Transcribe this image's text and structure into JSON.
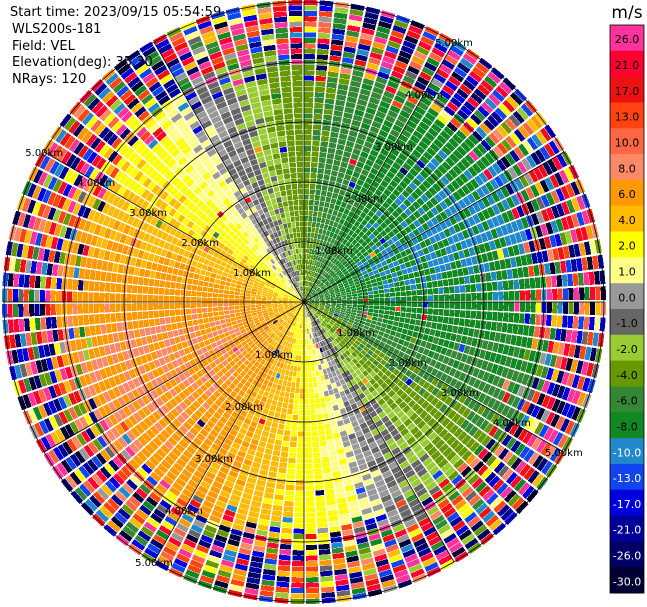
{
  "header": {
    "start_time": "Start time: 2023/09/15 05:54:59",
    "instrument": "WLS200s-181",
    "field": "Field: VEL",
    "elevation": "Elevation(deg): 35.30",
    "nrays": "NRays: 120"
  },
  "chart_data": {
    "type": "heatmap",
    "projection": "polar",
    "range_rings_km": [
      1,
      2,
      3,
      4,
      5
    ],
    "range_labels": [
      "1.00km",
      "2.00km",
      "3.00km",
      "4.00km",
      "5.00km"
    ],
    "radials_deg": [
      0,
      30,
      60,
      90,
      120,
      150
    ],
    "nrays": 120,
    "max_range_km": 5.0,
    "pattern": {
      "wind_toward_deg": 65,
      "max_speed_ms": 8,
      "noise_begins_km": 3.9
    },
    "colorbar": {
      "unit": "m/s",
      "tick_labels": [
        "26.0",
        "21.0",
        "17.0",
        "13.0",
        "10.0",
        "8.0",
        "6.0",
        "4.0",
        "2.0",
        "1.0",
        "0.0",
        "-1.0",
        "-2.0",
        "-4.0",
        "-6.0",
        "-8.0",
        "-10.0",
        "-13.0",
        "-17.0",
        "-21.0",
        "-26.0",
        "-30.0"
      ],
      "bins": [
        {
          "min": 26,
          "color": "#ff3399"
        },
        {
          "min": 21,
          "color": "#ff0033"
        },
        {
          "min": 17,
          "color": "#ee1111"
        },
        {
          "min": 13,
          "color": "#ff4411"
        },
        {
          "min": 10,
          "color": "#ff6644"
        },
        {
          "min": 8,
          "color": "#ff8866"
        },
        {
          "min": 6,
          "color": "#ff9900"
        },
        {
          "min": 4,
          "color": "#ffbb00"
        },
        {
          "min": 2,
          "color": "#ffff00"
        },
        {
          "min": 1,
          "color": "#ffff88"
        },
        {
          "min": 0,
          "color": "#999999"
        },
        {
          "min": -1,
          "color": "#666666"
        },
        {
          "min": -2,
          "color": "#99cc33"
        },
        {
          "min": -4,
          "color": "#669900"
        },
        {
          "min": -6,
          "color": "#338833"
        },
        {
          "min": -8,
          "color": "#118822"
        },
        {
          "min": -10,
          "color": "#2288cc"
        },
        {
          "min": -13,
          "color": "#1144ee"
        },
        {
          "min": -17,
          "color": "#0000dd"
        },
        {
          "min": -21,
          "color": "#000099"
        },
        {
          "min": -26,
          "color": "#000066"
        },
        {
          "min": -30,
          "color": "#000033"
        }
      ]
    }
  }
}
